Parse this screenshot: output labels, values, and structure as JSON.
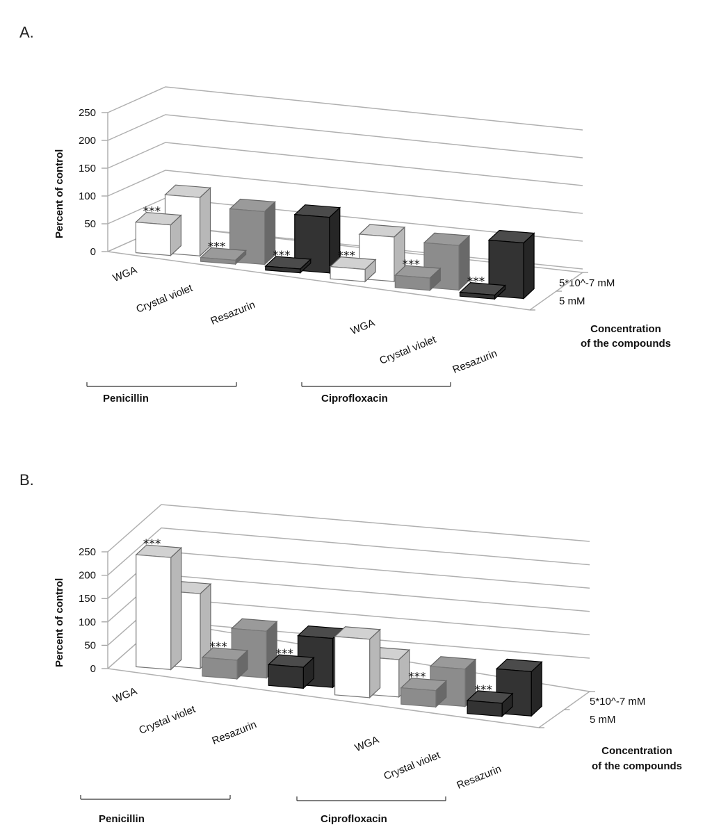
{
  "chart_data": [
    {
      "panel": "A.",
      "type": "bar",
      "ylabel": "Percent of control",
      "yticks": [
        "0",
        "50",
        "100",
        "150",
        "200",
        "250"
      ],
      "ylim": [
        0,
        250
      ],
      "categories": [
        "WGA",
        "Crystal violet",
        "Resazurin",
        "WGA",
        "Crystal violet",
        "Resazurin"
      ],
      "groups": [
        "Penicillin",
        "Ciprofloxacin"
      ],
      "depth_labels": [
        "5*10^-7 mM",
        "5 mM"
      ],
      "depth_title": [
        "Concentration",
        "of the compounds"
      ],
      "series": [
        {
          "name": "5 mM",
          "values": [
            55,
            7,
            7,
            22,
            22,
            7
          ],
          "annotations": [
            "***",
            "***",
            "***",
            "***",
            "***",
            "***"
          ]
        },
        {
          "name": "5*10^-7 mM",
          "values": [
            105,
            95,
            100,
            80,
            80,
            100
          ],
          "annotations": [
            "",
            "",
            "",
            "",
            "",
            ""
          ]
        }
      ],
      "colors": [
        "#ffffff",
        "#8c8c8c",
        "#333333",
        "#ffffff",
        "#8c8c8c",
        "#333333"
      ]
    },
    {
      "panel": "B.",
      "type": "bar",
      "ylabel": "Percent of control",
      "yticks": [
        "0",
        "50",
        "100",
        "150",
        "200",
        "250"
      ],
      "ylim": [
        0,
        250
      ],
      "categories": [
        "WGA",
        "Crystal violet",
        "Resazurin",
        "WGA",
        "Crystal violet",
        "Resazurin"
      ],
      "groups": [
        "Penicillin",
        "Ciprofloxacin"
      ],
      "depth_labels": [
        "5*10^-7 mM",
        "5 mM"
      ],
      "depth_title": [
        "Concentration",
        "of the compounds"
      ],
      "series": [
        {
          "name": "5 mM",
          "values": [
            240,
            40,
            45,
            125,
            35,
            28
          ],
          "annotations": [
            "***",
            "***",
            "***",
            "",
            "***",
            "***"
          ]
        },
        {
          "name": "5*10^-7 mM",
          "values": [
            160,
            100,
            105,
            80,
            80,
            95
          ],
          "annotations": [
            "",
            "",
            "",
            "",
            "",
            ""
          ]
        }
      ],
      "colors": [
        "#ffffff",
        "#8c8c8c",
        "#333333",
        "#ffffff",
        "#8c8c8c",
        "#333333"
      ]
    }
  ]
}
